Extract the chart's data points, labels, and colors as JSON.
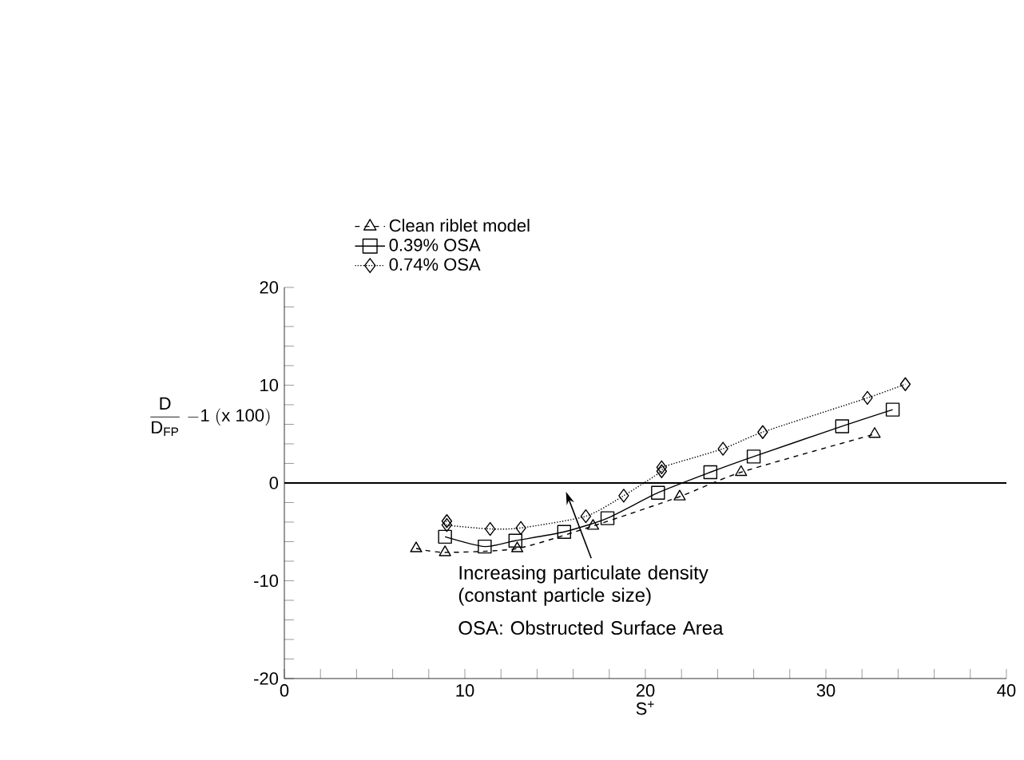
{
  "chart_data": {
    "type": "line",
    "xlabel": "S$^{+}$",
    "ylabel": "\\frac{\\mathrm{D}}{\\mathrm{D}_{\\mathrm{FP}}}\\ \\mathrm{-1\\ (x\\ 100)}",
    "xlim": [
      0,
      40
    ],
    "ylim": [
      -20,
      20
    ],
    "xticks": [
      0,
      {
        "value": 2,
        "label": null
      },
      {
        "value": 4,
        "label": null
      },
      {
        "value": 6,
        "label": null
      },
      {
        "value": 8,
        "label": null
      },
      10,
      {
        "value": 12,
        "label": null
      },
      {
        "value": 14,
        "label": null
      },
      {
        "value": 16,
        "label": null
      },
      {
        "value": 18,
        "label": null
      },
      20,
      {
        "value": 22,
        "label": null
      },
      {
        "value": 24,
        "label": null
      },
      {
        "value": 26,
        "label": null
      },
      {
        "value": 28,
        "label": null
      },
      30,
      {
        "value": 32,
        "label": null
      },
      {
        "value": 34,
        "label": null
      },
      {
        "value": 36,
        "label": null
      },
      {
        "value": 38,
        "label": null
      },
      40
    ],
    "yticks": [
      -20,
      {
        "value": -18,
        "label": null
      },
      {
        "value": -16,
        "label": null
      },
      {
        "value": -14,
        "label": null
      },
      {
        "value": -12,
        "label": null
      },
      -10,
      {
        "value": -8,
        "label": null
      },
      {
        "value": -6,
        "label": null
      },
      {
        "value": -4,
        "label": null
      },
      {
        "value": -2,
        "label": null
      },
      0,
      {
        "value": 2,
        "label": null
      },
      {
        "value": 4,
        "label": null
      },
      {
        "value": 6,
        "label": null
      },
      {
        "value": 8,
        "label": null
      },
      10,
      {
        "value": 12,
        "label": null
      },
      {
        "value": 14,
        "label": null
      },
      {
        "value": 16,
        "label": null
      },
      {
        "value": 18,
        "label": null
      },
      20
    ],
    "legend": "top",
    "grid": false,
    "ref_lines": [
      {
        "axis": "y",
        "value": 0,
        "color": "#000000",
        "line_style": "solid"
      }
    ],
    "annotations": [
      "Increasing particulate density (constant particle size)",
      "OSA: Obstructed Surface Area"
    ],
    "series": [
      {
        "name": "Clean riblet model",
        "color": "#000000",
        "marker": "triangle",
        "line_style": "dashed",
        "x": [
          7.3,
          8.9,
          12.9,
          17.1,
          21.9,
          25.3,
          32.7
        ],
        "values": [
          -6.7,
          -7.1,
          -6.7,
          -4.4,
          -1.4,
          1.1,
          5.0
        ]
      },
      {
        "name": "0.39% OSA",
        "color": "#000000",
        "marker": "square",
        "line_style": "solid",
        "x": [
          8.9,
          11.1,
          12.8,
          15.5,
          17.9,
          20.7,
          23.6,
          26.0,
          30.9,
          33.7
        ],
        "values": [
          -5.5,
          -6.5,
          -5.9,
          -5.0,
          -3.6,
          -1.0,
          1.1,
          2.7,
          5.8,
          7.5
        ]
      },
      {
        "name": "0.74% OSA",
        "color": "#000000",
        "marker": "diamond",
        "line_style": "dotted",
        "x": [
          9.0,
          9.0,
          11.4,
          13.1,
          16.7,
          18.8,
          20.9,
          20.9,
          24.3,
          26.5,
          32.3,
          34.4
        ],
        "values": [
          -3.9,
          -4.3,
          -4.7,
          -4.6,
          -3.4,
          -1.3,
          1.2,
          1.6,
          3.5,
          5.2,
          8.7,
          10.1
        ]
      }
    ]
  }
}
